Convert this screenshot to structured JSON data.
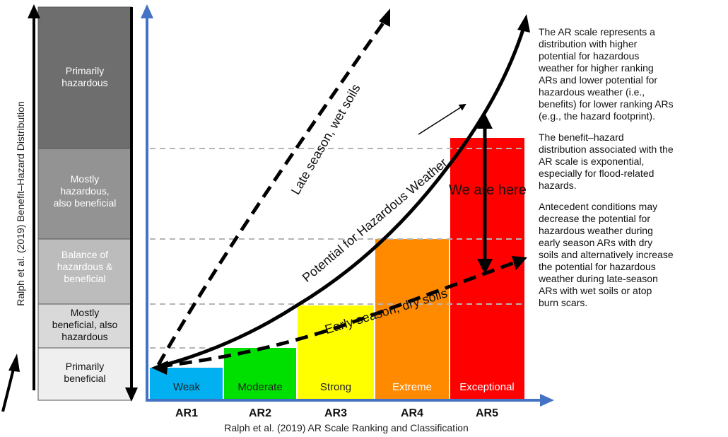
{
  "left_bar": {
    "axis_label": "Ralph et al. (2019) Benefit–Hazard Distribution",
    "segments": [
      {
        "label": "Primarily\nhazardous",
        "fill": "#6e6e6e"
      },
      {
        "label": "Mostly\nhazardous,\nalso beneficial",
        "fill": "#939393"
      },
      {
        "label": "Balance of\nhazardous &\nbeneficial",
        "fill": "#bcbcbc"
      },
      {
        "label": "Mostly\nbeneficial, also\nhazardous",
        "fill": "#d9d9d9"
      },
      {
        "label": "Primarily\nbeneficial",
        "fill": "#efefef"
      }
    ]
  },
  "chart": {
    "x_axis_label": "Ralph et al. (2019) AR Scale Ranking and Classification",
    "categories": [
      {
        "code": "AR1",
        "name": "Weak",
        "color": "#00b0f0",
        "name_color": "#222222"
      },
      {
        "code": "AR2",
        "name": "Moderate",
        "color": "#00e000",
        "name_color": "#222222"
      },
      {
        "code": "AR3",
        "name": "Strong",
        "color": "#ffff00",
        "name_color": "#222222"
      },
      {
        "code": "AR4",
        "name": "Extreme",
        "color": "#ff8a00",
        "name_color": "#ffffff"
      },
      {
        "code": "AR5",
        "name": "Exceptional",
        "color": "#ff0000",
        "name_color": "#ffffff"
      }
    ],
    "curves": {
      "main": "Potential for Hazardous Weather",
      "late": "Late season, wet soils",
      "early": "Early season, dry soils"
    },
    "annotation": "We are here",
    "axis_color": "#4472c4"
  },
  "side_text": {
    "paragraphs": [
      "The AR scale represents a\ndistribution with higher\npotential for hazardous\nweather for higher ranking\nARs and lower potential for\nhazardous weather (i.e.,\nbenefits) for lower ranking ARs\n(e.g., the hazard footprint).",
      "The benefit–hazard\ndistribution associated with the\nAR scale is exponential,\nespecially for flood-related\nhazards.",
      "Antecedent conditions may\ndecrease the potential for\nhazardous weather during\nearly season ARs with dry\nsoils and alternatively increase\nthe potential for hazardous\nweather during late-season\nARs with wet soils or atop\nburn scars."
    ]
  }
}
